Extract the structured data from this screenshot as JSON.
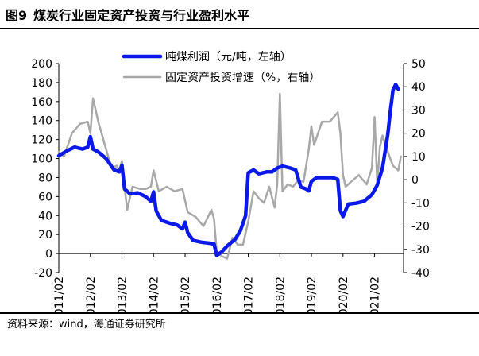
{
  "figure": {
    "number": "图9",
    "title": "煤炭行业固定资产投资与行业盈利水平",
    "source": "资料来源：wind，海通证券研究所"
  },
  "colors": {
    "profit": "#0b19e8",
    "investment": "#a8a8a8",
    "axis": "#000000"
  },
  "chart_data": {
    "type": "line",
    "title": "煤炭行业固定资产投资与行业盈利水平",
    "legend": {
      "placement": "top-center"
    },
    "grid": false,
    "x_ticks": [
      "2011/02",
      "2012/02",
      "2013/02",
      "2014/02",
      "2015/02",
      "2016/02",
      "2017/02",
      "2018/02",
      "2019/02",
      "2020/02",
      "2021/02"
    ],
    "y_left": {
      "min": -20,
      "max": 200,
      "ticks": [
        "-20",
        "0",
        "20",
        "40",
        "60",
        "80",
        "100",
        "120",
        "140",
        "160",
        "180",
        "200"
      ]
    },
    "y_right": {
      "min": -40,
      "max": 50,
      "ticks": [
        "-40",
        "-30",
        "-20",
        "-10",
        "0",
        "10",
        "20",
        "30",
        "40",
        "50"
      ]
    },
    "series": [
      {
        "name": "吨煤利润（元/吨，左轴）",
        "axis": "left",
        "points": [
          [
            "2011-02",
            103
          ],
          [
            "2011-05",
            108
          ],
          [
            "2011-08",
            112
          ],
          [
            "2011-11",
            110
          ],
          [
            "2012-01",
            112
          ],
          [
            "2012-02",
            123
          ],
          [
            "2012-03",
            110
          ],
          [
            "2012-05",
            107
          ],
          [
            "2012-08",
            100
          ],
          [
            "2012-11",
            88
          ],
          [
            "2013-01",
            86
          ],
          [
            "2013-02",
            93
          ],
          [
            "2013-03",
            68
          ],
          [
            "2013-05",
            63
          ],
          [
            "2013-08",
            64
          ],
          [
            "2013-11",
            60
          ],
          [
            "2014-01",
            55
          ],
          [
            "2014-02",
            65
          ],
          [
            "2014-03",
            45
          ],
          [
            "2014-05",
            35
          ],
          [
            "2014-08",
            32
          ],
          [
            "2014-11",
            30
          ],
          [
            "2015-01",
            26
          ],
          [
            "2015-02",
            33
          ],
          [
            "2015-03",
            22
          ],
          [
            "2015-05",
            14
          ],
          [
            "2015-08",
            12
          ],
          [
            "2015-11",
            11
          ],
          [
            "2016-01",
            10
          ],
          [
            "2016-02",
            -2
          ],
          [
            "2016-04",
            2
          ],
          [
            "2016-06",
            8
          ],
          [
            "2016-09",
            15
          ],
          [
            "2016-11",
            24
          ],
          [
            "2017-01",
            40
          ],
          [
            "2017-02",
            85
          ],
          [
            "2017-04",
            88
          ],
          [
            "2017-06",
            84
          ],
          [
            "2017-09",
            86
          ],
          [
            "2017-11",
            86
          ],
          [
            "2018-01",
            90
          ],
          [
            "2018-03",
            92
          ],
          [
            "2018-06",
            90
          ],
          [
            "2018-08",
            88
          ],
          [
            "2018-10",
            70
          ],
          [
            "2018-12",
            68
          ],
          [
            "2019-01",
            66
          ],
          [
            "2019-02",
            76
          ],
          [
            "2019-04",
            80
          ],
          [
            "2019-07",
            80
          ],
          [
            "2019-10",
            80
          ],
          [
            "2019-12",
            78
          ],
          [
            "2020-01",
            45
          ],
          [
            "2020-02",
            39
          ],
          [
            "2020-04",
            52
          ],
          [
            "2020-07",
            53
          ],
          [
            "2020-10",
            55
          ],
          [
            "2021-01",
            62
          ],
          [
            "2021-03",
            72
          ],
          [
            "2021-05",
            90
          ],
          [
            "2021-07",
            125
          ],
          [
            "2021-08",
            150
          ],
          [
            "2021-09",
            172
          ],
          [
            "2021-10",
            178
          ],
          [
            "2021-11",
            173
          ]
        ]
      },
      {
        "name": "固定资产投资增速（%，右轴）",
        "axis": "right",
        "points": [
          [
            "2011-02",
            12
          ],
          [
            "2011-04",
            10
          ],
          [
            "2011-07",
            20
          ],
          [
            "2011-10",
            24
          ],
          [
            "2012-01",
            25
          ],
          [
            "2012-02",
            20
          ],
          [
            "2012-03",
            35
          ],
          [
            "2012-05",
            25
          ],
          [
            "2012-07",
            17
          ],
          [
            "2012-10",
            5
          ],
          [
            "2012-12",
            6
          ],
          [
            "2013-01",
            4
          ],
          [
            "2013-02",
            8
          ],
          [
            "2013-03",
            -3
          ],
          [
            "2013-04",
            -13
          ],
          [
            "2013-06",
            -3
          ],
          [
            "2013-09",
            -4
          ],
          [
            "2013-11",
            -4
          ],
          [
            "2014-01",
            -3
          ],
          [
            "2014-02",
            4
          ],
          [
            "2014-04",
            -5
          ],
          [
            "2014-07",
            -3
          ],
          [
            "2014-10",
            -5
          ],
          [
            "2015-01",
            -4
          ],
          [
            "2015-03",
            -14
          ],
          [
            "2015-06",
            -16
          ],
          [
            "2015-09",
            -20
          ],
          [
            "2015-12",
            -13
          ],
          [
            "2016-01",
            -17
          ],
          [
            "2016-02",
            -31
          ],
          [
            "2016-04",
            -33
          ],
          [
            "2016-06",
            -34
          ],
          [
            "2016-08",
            -25
          ],
          [
            "2016-10",
            -28
          ],
          [
            "2016-12",
            -28
          ],
          [
            "2017-02",
            -18
          ],
          [
            "2017-04",
            -5
          ],
          [
            "2017-06",
            -8
          ],
          [
            "2017-08",
            -10
          ],
          [
            "2017-10",
            -3
          ],
          [
            "2017-12",
            -12
          ],
          [
            "2018-01",
            -2
          ],
          [
            "2018-02",
            37
          ],
          [
            "2018-03",
            -5
          ],
          [
            "2018-05",
            -2
          ],
          [
            "2018-07",
            -3
          ],
          [
            "2018-09",
            0
          ],
          [
            "2018-11",
            -1
          ],
          [
            "2019-01",
            13
          ],
          [
            "2019-02",
            23
          ],
          [
            "2019-03",
            15
          ],
          [
            "2019-06",
            25
          ],
          [
            "2019-09",
            25
          ],
          [
            "2019-12",
            29
          ],
          [
            "2020-01",
            20
          ],
          [
            "2020-02",
            2
          ],
          [
            "2020-03",
            -3
          ],
          [
            "2020-05",
            -1
          ],
          [
            "2020-08",
            2
          ],
          [
            "2020-11",
            -2
          ],
          [
            "2021-01",
            5
          ],
          [
            "2021-02",
            27
          ],
          [
            "2021-03",
            -2
          ],
          [
            "2021-04",
            14
          ],
          [
            "2021-05",
            19
          ],
          [
            "2021-07",
            12
          ],
          [
            "2021-09",
            6
          ],
          [
            "2021-11",
            4
          ],
          [
            "2021-12",
            10
          ]
        ]
      }
    ]
  }
}
